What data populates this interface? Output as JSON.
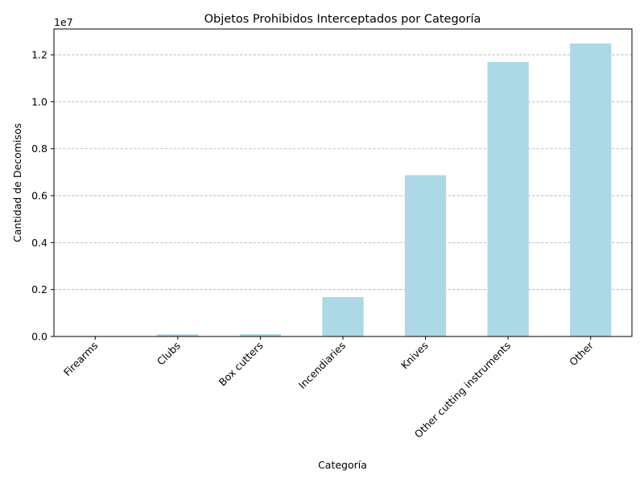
{
  "chart_data": {
    "type": "bar",
    "title": "Objetos Prohibidos Interceptados por Categoría",
    "xlabel": "Categoría",
    "ylabel": "Cantidad de Decomisos",
    "y_offset_label": "1e7",
    "categories": [
      "Firearms",
      "Clubs",
      "Box cutters",
      "Incendiaries",
      "Knives",
      "Other cutting instruments",
      "Other"
    ],
    "values": [
      12000,
      95000,
      100000,
      1680000,
      6870000,
      11700000,
      12480000
    ],
    "ylim": [
      0,
      13100000
    ],
    "yticks": [
      0,
      2000000,
      4000000,
      6000000,
      8000000,
      10000000,
      12000000
    ],
    "ytick_labels": [
      "0.0",
      "0.2",
      "0.4",
      "0.6",
      "0.8",
      "1.0",
      "1.2"
    ],
    "bar_color": "#add8e6",
    "grid": "y-dashed",
    "legend": "none"
  }
}
